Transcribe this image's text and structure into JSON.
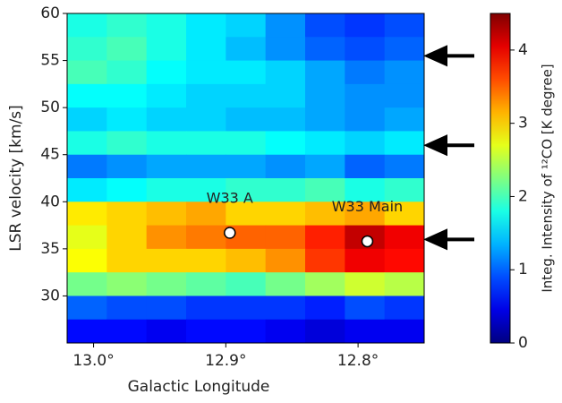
{
  "chart_data": {
    "type": "heatmap",
    "xlabel": "Galactic Longitude",
    "ylabel": "LSR velocity [km/s]",
    "colorbar_label": "Integ. Intensity of ¹²CO [K degree]",
    "colormap": "jet",
    "clim": [
      0,
      4.5
    ],
    "cbar_ticks": [
      0,
      1,
      2,
      3,
      4
    ],
    "xlim": [
      13.02,
      12.75
    ],
    "ylim": [
      25,
      60
    ],
    "xticks": [
      {
        "value": 13.0,
        "label": "13.0°"
      },
      {
        "value": 12.9,
        "label": "12.9°"
      },
      {
        "value": 12.8,
        "label": "12.8°"
      }
    ],
    "yticks": [
      30,
      35,
      40,
      45,
      50,
      55,
      60
    ],
    "x": [
      13.005,
      12.975,
      12.945,
      12.915,
      12.885,
      12.855,
      12.825,
      12.795,
      12.765
    ],
    "y": [
      58.75,
      56.25,
      53.75,
      51.25,
      48.75,
      46.25,
      43.75,
      41.25,
      38.75,
      36.25,
      33.75,
      31.25,
      28.75,
      26.25
    ],
    "z": [
      [
        1.8,
        1.9,
        1.8,
        1.6,
        1.5,
        1.2,
        0.9,
        0.8,
        0.9
      ],
      [
        1.9,
        2.0,
        1.8,
        1.6,
        1.4,
        1.2,
        1.0,
        0.9,
        1.0
      ],
      [
        2.0,
        1.9,
        1.7,
        1.6,
        1.6,
        1.5,
        1.3,
        1.1,
        1.2
      ],
      [
        1.7,
        1.7,
        1.6,
        1.5,
        1.5,
        1.5,
        1.3,
        1.2,
        1.2
      ],
      [
        1.5,
        1.6,
        1.5,
        1.5,
        1.4,
        1.4,
        1.3,
        1.2,
        1.3
      ],
      [
        1.8,
        1.9,
        1.8,
        1.8,
        1.8,
        1.7,
        1.6,
        1.5,
        1.6
      ],
      [
        1.1,
        1.2,
        1.3,
        1.3,
        1.3,
        1.2,
        1.3,
        1.0,
        1.1
      ],
      [
        1.6,
        1.7,
        1.8,
        1.8,
        1.9,
        1.9,
        2.0,
        1.8,
        1.9
      ],
      [
        2.9,
        3.0,
        3.1,
        3.2,
        3.0,
        3.0,
        3.1,
        3.2,
        3.0
      ],
      [
        2.7,
        3.0,
        3.3,
        3.4,
        3.5,
        3.5,
        3.8,
        4.2,
        4.0
      ],
      [
        2.8,
        3.0,
        3.0,
        3.0,
        3.1,
        3.3,
        3.7,
        4.0,
        3.9
      ],
      [
        2.2,
        2.3,
        2.2,
        2.1,
        2.0,
        2.2,
        2.4,
        2.6,
        2.5
      ],
      [
        1.0,
        0.9,
        0.9,
        0.8,
        0.8,
        0.8,
        0.7,
        0.9,
        0.8
      ],
      [
        0.6,
        0.6,
        0.5,
        0.6,
        0.6,
        0.5,
        0.4,
        0.5,
        0.5
      ]
    ],
    "sources": [
      {
        "label": "W33 A",
        "x": 12.897,
        "y": 36.7
      },
      {
        "label": "W33 Main",
        "x": 12.793,
        "y": 35.8
      }
    ],
    "arrows": [
      55.5,
      46,
      36
    ]
  }
}
